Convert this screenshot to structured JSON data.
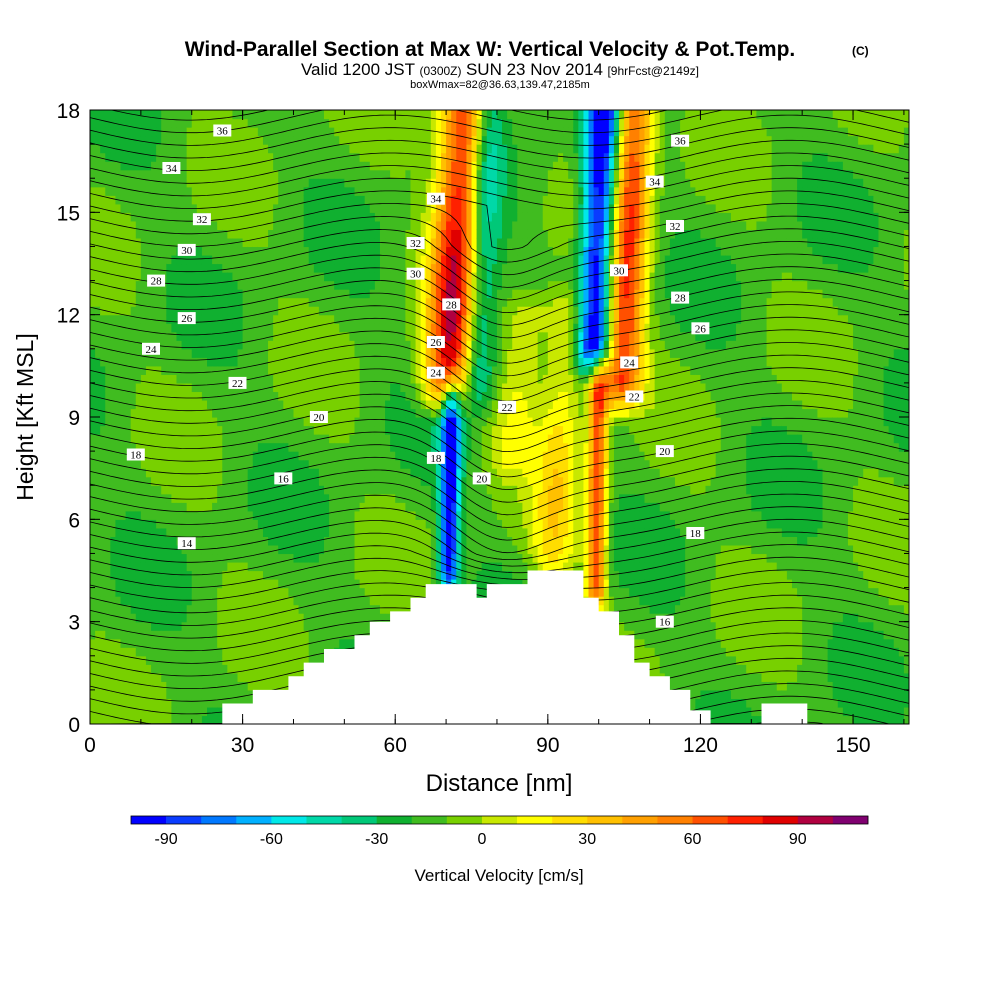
{
  "chart_data": {
    "type": "heatmap",
    "title": "Wind-Parallel Section at Max W: Vertical Velocity & Pot.Temp.",
    "title_suffix": "(C)",
    "subtitle_parts": [
      "Valid 1200 JST",
      "(0300Z)",
      "SUN 23 Nov 2014",
      "[9hrFcst@2149z]"
    ],
    "subtitle2": "boxWmax=82@36.63,139.47,2185m",
    "xlabel": "Distance [nm]",
    "ylabel": "Height [Kft MSL]",
    "xlim": [
      0,
      161
    ],
    "ylim": [
      0,
      18
    ],
    "x_ticks": [
      0,
      30,
      60,
      90,
      120,
      150
    ],
    "y_ticks": [
      0,
      3,
      6,
      9,
      12,
      15,
      18
    ],
    "colorbar": {
      "label": "Vertical Velocity [cm/s]",
      "ticks": [
        -90,
        -60,
        -30,
        0,
        30,
        60,
        90
      ],
      "min": -100,
      "max": 110,
      "colors": [
        "#0000ff",
        "#0a3cff",
        "#0078ff",
        "#00b0ff",
        "#00e8e8",
        "#00d8a8",
        "#00c878",
        "#10b030",
        "#40bc20",
        "#78d000",
        "#c8e800",
        "#ffff00",
        "#ffdd00",
        "#ffc000",
        "#ffa000",
        "#ff8000",
        "#ff5000",
        "#ff2000",
        "#e00000",
        "#b00040",
        "#800070"
      ]
    },
    "terrain": [
      [
        0,
        0
      ],
      [
        26,
        0
      ],
      [
        26,
        0.6
      ],
      [
        32,
        0.6
      ],
      [
        32,
        1
      ],
      [
        39,
        1
      ],
      [
        39,
        1.4
      ],
      [
        42,
        1.4
      ],
      [
        42,
        1.8
      ],
      [
        46,
        1.8
      ],
      [
        46,
        2.2
      ],
      [
        52,
        2.2
      ],
      [
        52,
        2.6
      ],
      [
        55,
        2.6
      ],
      [
        55,
        3
      ],
      [
        59,
        3
      ],
      [
        59,
        3.3
      ],
      [
        63,
        3.3
      ],
      [
        63,
        3.7
      ],
      [
        66,
        3.7
      ],
      [
        66,
        4.1
      ],
      [
        76,
        4.1
      ],
      [
        76,
        3.7
      ],
      [
        78,
        3.7
      ],
      [
        78,
        4.1
      ],
      [
        86,
        4.1
      ],
      [
        86,
        4.5
      ],
      [
        97,
        4.5
      ],
      [
        97,
        3.7
      ],
      [
        100,
        3.7
      ],
      [
        100,
        3.3
      ],
      [
        104,
        3.3
      ],
      [
        104,
        2.6
      ],
      [
        107,
        2.6
      ],
      [
        107,
        1.8
      ],
      [
        110,
        1.8
      ],
      [
        110,
        1.4
      ],
      [
        114,
        1.4
      ],
      [
        114,
        1
      ],
      [
        118,
        1
      ],
      [
        118,
        0.4
      ],
      [
        122,
        0.4
      ],
      [
        122,
        0
      ],
      [
        132,
        0
      ],
      [
        132,
        0.6
      ],
      [
        141,
        0.6
      ],
      [
        141,
        0
      ],
      [
        161,
        0
      ]
    ],
    "updrafts": [
      {
        "x0": 67,
        "x1": 74,
        "ylow": 10,
        "yhigh": 18,
        "amp": 100
      },
      {
        "x0": 102,
        "x1": 107,
        "ylow": 10,
        "yhigh": 18,
        "amp": 85
      },
      {
        "x0": 99,
        "x1": 100,
        "ylow": 4,
        "yhigh": 10,
        "amp": 80
      },
      {
        "x0": 88,
        "x1": 94,
        "ylow": 5,
        "yhigh": 12,
        "amp": 35
      },
      {
        "x0": 80,
        "x1": 86,
        "ylow": 8,
        "yhigh": 12,
        "amp": 25
      }
    ],
    "downdrafts": [
      {
        "x0": 74,
        "x1": 78,
        "ylow": 10,
        "yhigh": 18,
        "amp": -50
      },
      {
        "x0": 97,
        "x1": 101,
        "ylow": 11,
        "yhigh": 18,
        "amp": -95
      },
      {
        "x0": 70,
        "x1": 71,
        "ylow": 4.5,
        "yhigh": 9.5,
        "amp": -85
      }
    ],
    "isotherm_labels": [
      {
        "text": "36",
        "x": 26,
        "y": 17.4
      },
      {
        "text": "36",
        "x": 116,
        "y": 17.1
      },
      {
        "text": "34",
        "x": 16,
        "y": 16.3
      },
      {
        "text": "34",
        "x": 68,
        "y": 15.4
      },
      {
        "text": "34",
        "x": 111,
        "y": 15.9
      },
      {
        "text": "32",
        "x": 22,
        "y": 14.8
      },
      {
        "text": "32",
        "x": 64,
        "y": 14.1
      },
      {
        "text": "32",
        "x": 115,
        "y": 14.6
      },
      {
        "text": "30",
        "x": 19,
        "y": 13.9
      },
      {
        "text": "30",
        "x": 64,
        "y": 13.2
      },
      {
        "text": "30",
        "x": 104,
        "y": 13.3
      },
      {
        "text": "28",
        "x": 13,
        "y": 13
      },
      {
        "text": "28",
        "x": 71,
        "y": 12.3
      },
      {
        "text": "28",
        "x": 116,
        "y": 12.5
      },
      {
        "text": "26",
        "x": 19,
        "y": 11.9
      },
      {
        "text": "26",
        "x": 68,
        "y": 11.2
      },
      {
        "text": "26",
        "x": 120,
        "y": 11.6
      },
      {
        "text": "24",
        "x": 12,
        "y": 11
      },
      {
        "text": "24",
        "x": 68,
        "y": 10.3
      },
      {
        "text": "24",
        "x": 106,
        "y": 10.6
      },
      {
        "text": "22",
        "x": 29,
        "y": 10
      },
      {
        "text": "22",
        "x": 82,
        "y": 9.3
      },
      {
        "text": "22",
        "x": 107,
        "y": 9.6
      },
      {
        "text": "20",
        "x": 45,
        "y": 9
      },
      {
        "text": "20",
        "x": 77,
        "y": 7.2
      },
      {
        "text": "20",
        "x": 113,
        "y": 8
      },
      {
        "text": "18",
        "x": 9,
        "y": 7.9
      },
      {
        "text": "18",
        "x": 68,
        "y": 7.8
      },
      {
        "text": "18",
        "x": 119,
        "y": 5.6
      },
      {
        "text": "16",
        "x": 38,
        "y": 7.2
      },
      {
        "text": "16",
        "x": 113,
        "y": 3
      },
      {
        "text": "14",
        "x": 19,
        "y": 5.3
      }
    ]
  }
}
